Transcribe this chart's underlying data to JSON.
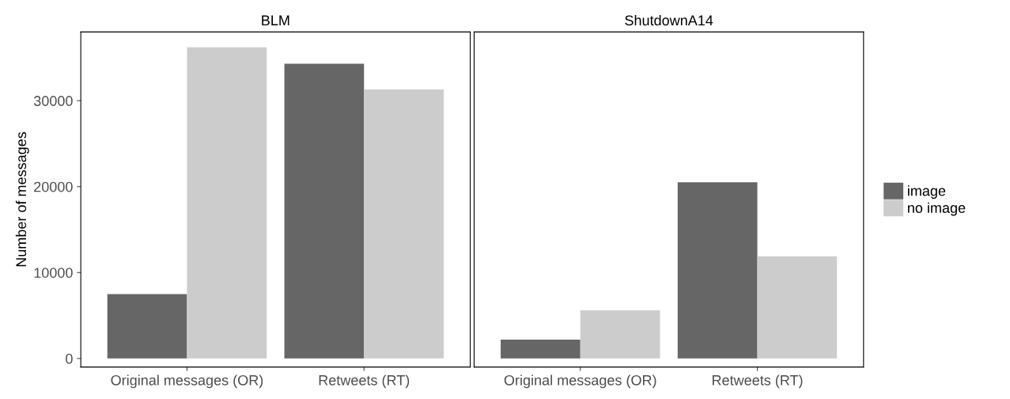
{
  "chart_data": [
    {
      "type": "bar",
      "title": "BLM",
      "ylabel": "Number of messages",
      "categories": [
        "Original messages (OR)",
        "Retweets (RT)"
      ],
      "series": [
        {
          "name": "image",
          "color": "#666666",
          "values": [
            7500,
            34300
          ]
        },
        {
          "name": "no image",
          "color": "#cccccc",
          "values": [
            36200,
            31300
          ]
        }
      ],
      "ylim": [
        -1000,
        38000
      ],
      "yticks": [
        0,
        10000,
        20000,
        30000
      ],
      "grid": false,
      "legend": "right"
    },
    {
      "type": "bar",
      "title": "ShutdownA14",
      "categories": [
        "Original messages (OR)",
        "Retweets (RT)"
      ],
      "series": [
        {
          "color": "#666666",
          "values": [
            2200,
            20500
          ]
        },
        {
          "color": "#cccccc",
          "values": [
            5600,
            11900
          ]
        }
      ],
      "ylim": [
        -1000,
        38000
      ],
      "yticks": [
        0,
        10000,
        20000,
        30000
      ],
      "tick_labels": "x",
      "grid": false
    }
  ]
}
